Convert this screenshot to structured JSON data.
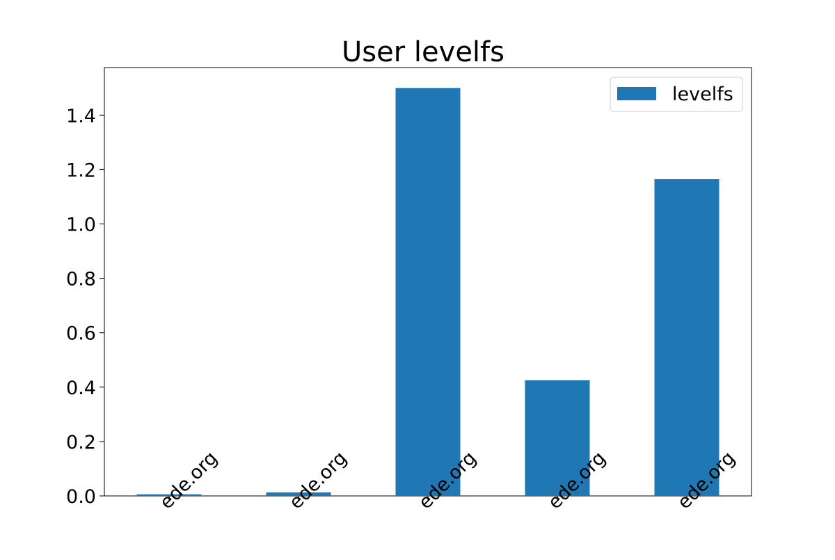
{
  "chart_data": {
    "type": "bar",
    "title": "User levelfs",
    "categories": [
      "ede.org",
      "ede.org",
      "ede.org",
      "ede.org",
      "ede.org"
    ],
    "series": [
      {
        "name": "levelfs",
        "values": [
          0.006,
          0.013,
          1.5,
          0.425,
          1.165
        ],
        "color": "#1f77b4"
      }
    ],
    "ylim": [
      0,
      1.575
    ],
    "yticks": [
      0.0,
      0.2,
      0.4,
      0.6,
      0.8,
      1.0,
      1.2,
      1.4
    ],
    "ytick_labels": [
      "0.0",
      "0.2",
      "0.4",
      "0.6",
      "0.8",
      "1.0",
      "1.2",
      "1.4"
    ],
    "xlabel": "",
    "ylabel": "",
    "grid": false,
    "legend_position": "top-right",
    "xtick_rotation": 45
  }
}
